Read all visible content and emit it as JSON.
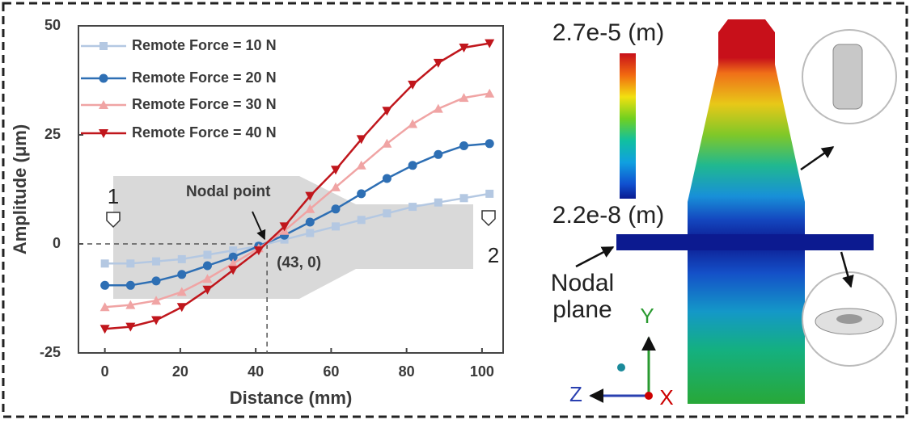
{
  "chart_data": {
    "type": "line",
    "x_label": "Distance (mm)",
    "y_label": "Amplitude (μm)",
    "xlim": [
      -7,
      105.6
    ],
    "ylim": [
      -25,
      50
    ],
    "xticks": [
      0,
      20,
      40,
      60,
      80,
      100
    ],
    "yticks": [
      -25,
      0,
      25,
      50
    ],
    "x": [
      0,
      6.8,
      13.6,
      20.4,
      27.2,
      34,
      40.8,
      47.6,
      54.4,
      61.2,
      68,
      74.8,
      81.6,
      88.4,
      95.2,
      102
    ],
    "legend": "upper left",
    "series": [
      {
        "name": "Remote Force = 10 N",
        "color": "#b4c8e2",
        "marker": "square",
        "values": [
          -4.5,
          -4.5,
          -4,
          -3.5,
          -2.5,
          -1.5,
          -0.5,
          1,
          2.5,
          4,
          5.5,
          7,
          8.5,
          9.5,
          10.5,
          11.5
        ]
      },
      {
        "name": "Remote Force = 20 N",
        "color": "#2e6fb4",
        "marker": "circle",
        "values": [
          -9.5,
          -9.5,
          -8.5,
          -7,
          -5,
          -3,
          -0.5,
          2,
          5,
          8,
          11.5,
          15,
          18,
          20.5,
          22.5,
          23
        ]
      },
      {
        "name": "Remote Force = 30 N",
        "color": "#f0a4a4",
        "marker": "triangle-up",
        "values": [
          -14.5,
          -14,
          -13,
          -11,
          -8,
          -4.5,
          -1,
          3,
          8,
          13,
          18,
          23,
          27.5,
          31,
          33.5,
          34.5
        ]
      },
      {
        "name": "Remote Force = 40 N",
        "color": "#c0161c",
        "marker": "triangle-down",
        "values": [
          -19.5,
          -19,
          -17.5,
          -14.5,
          -10.5,
          -6,
          -1.5,
          4,
          11,
          17,
          24,
          30.5,
          36.5,
          41.5,
          45,
          46
        ]
      }
    ],
    "nodal_point": {
      "text": "Nodal point",
      "x": 43,
      "y": 0,
      "label": "(43, 0)"
    },
    "end_labels": [
      "1",
      "2"
    ]
  },
  "simulation": {
    "max_label": "2.7e-5 (m)",
    "min_label": "2.2e-8 (m)",
    "plane_label": [
      "Nodal",
      "plane"
    ],
    "axes": [
      "Y",
      "Z",
      "X"
    ]
  }
}
